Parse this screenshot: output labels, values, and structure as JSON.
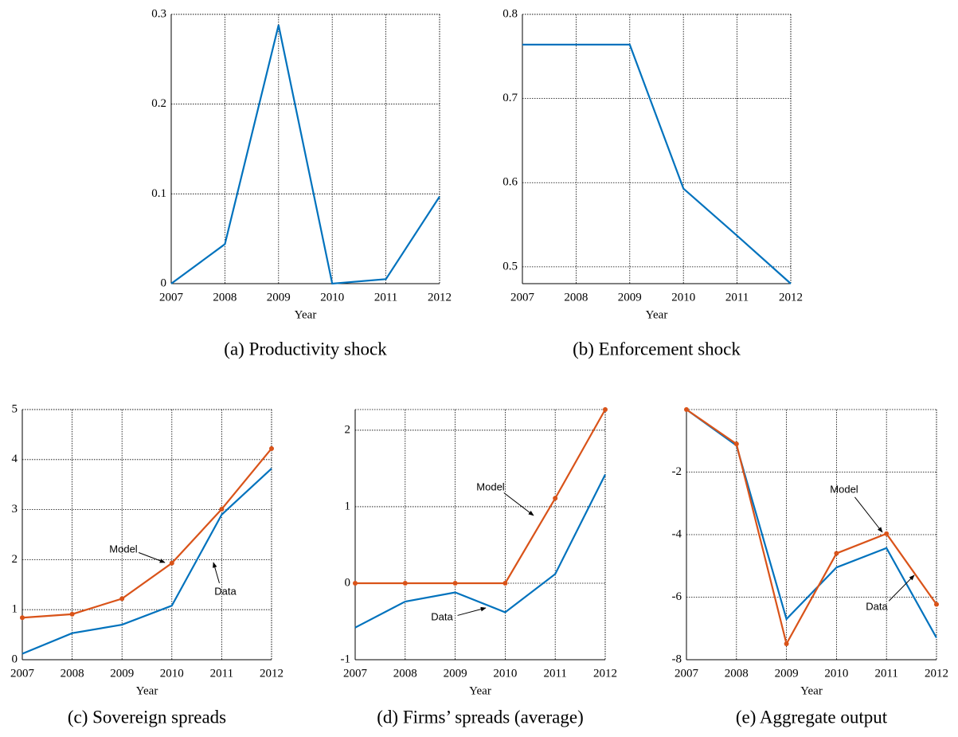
{
  "chart_data": [
    {
      "type": "line",
      "caption": "(a) Productivity shock",
      "xlabel": "Year",
      "categories": [
        "2007",
        "2008",
        "2009",
        "2010",
        "2011",
        "2012"
      ],
      "values": [
        0,
        0.044,
        0.288,
        0,
        0.005,
        0.097
      ],
      "color": "#0072bd",
      "ylim": [
        0,
        0.3
      ],
      "yticks": [
        0,
        0.1,
        0.2,
        0.3
      ],
      "grid": true
    },
    {
      "type": "line",
      "caption": "(b) Enforcement shock",
      "xlabel": "Year",
      "categories": [
        "2007",
        "2008",
        "2009",
        "2010",
        "2011",
        "2012"
      ],
      "values": [
        0.764,
        0.764,
        0.764,
        0.593,
        0.537,
        0.48
      ],
      "color": "#0072bd",
      "ylim": [
        0.48,
        0.8
      ],
      "yticks": [
        0.5,
        0.6,
        0.7,
        0.8
      ],
      "grid": true
    },
    {
      "type": "line",
      "caption": "(c) Sovereign spreads",
      "xlabel": "Year",
      "categories": [
        "2007",
        "2008",
        "2009",
        "2010",
        "2011",
        "2012"
      ],
      "series": [
        {
          "name": "Model",
          "color": "#d95319",
          "markers": true,
          "values": [
            0.84,
            0.91,
            1.22,
            1.93,
            3.01,
            4.22
          ]
        },
        {
          "name": "Data",
          "color": "#0072bd",
          "markers": false,
          "values": [
            0.12,
            0.53,
            0.7,
            1.08,
            2.9,
            3.82
          ]
        }
      ],
      "ylim": [
        0,
        5
      ],
      "yticks": [
        0,
        1,
        2,
        3,
        4,
        5
      ],
      "grid": true
    },
    {
      "type": "line",
      "caption": "(d) Firms’ spreads (average)",
      "xlabel": "Year",
      "categories": [
        "2007",
        "2008",
        "2009",
        "2010",
        "2011",
        "2012"
      ],
      "series": [
        {
          "name": "Model",
          "color": "#d95319",
          "markers": true,
          "values": [
            0,
            0,
            0,
            0,
            1.11,
            2.27
          ]
        },
        {
          "name": "Data",
          "color": "#0072bd",
          "markers": false,
          "values": [
            -0.58,
            -0.24,
            -0.12,
            -0.38,
            0.12,
            1.42
          ]
        }
      ],
      "ylim": [
        -1,
        2.27
      ],
      "yticks": [
        -1,
        0,
        1,
        2
      ],
      "grid": true
    },
    {
      "type": "line",
      "caption": "(e) Aggregate output",
      "xlabel": "Year",
      "categories": [
        "2007",
        "2008",
        "2009",
        "2010",
        "2011",
        "2012"
      ],
      "series": [
        {
          "name": "Model",
          "color": "#d95319",
          "markers": true,
          "values": [
            0,
            -1.1,
            -7.49,
            -4.6,
            -3.97,
            -6.23
          ]
        },
        {
          "name": "Data",
          "color": "#0072bd",
          "markers": false,
          "values": [
            0,
            -1.15,
            -6.7,
            -5.05,
            -4.43,
            -7.3
          ]
        }
      ],
      "ylim": [
        -8,
        0
      ],
      "yticks": [
        -8,
        -6,
        -4,
        -2
      ],
      "grid": true
    }
  ]
}
